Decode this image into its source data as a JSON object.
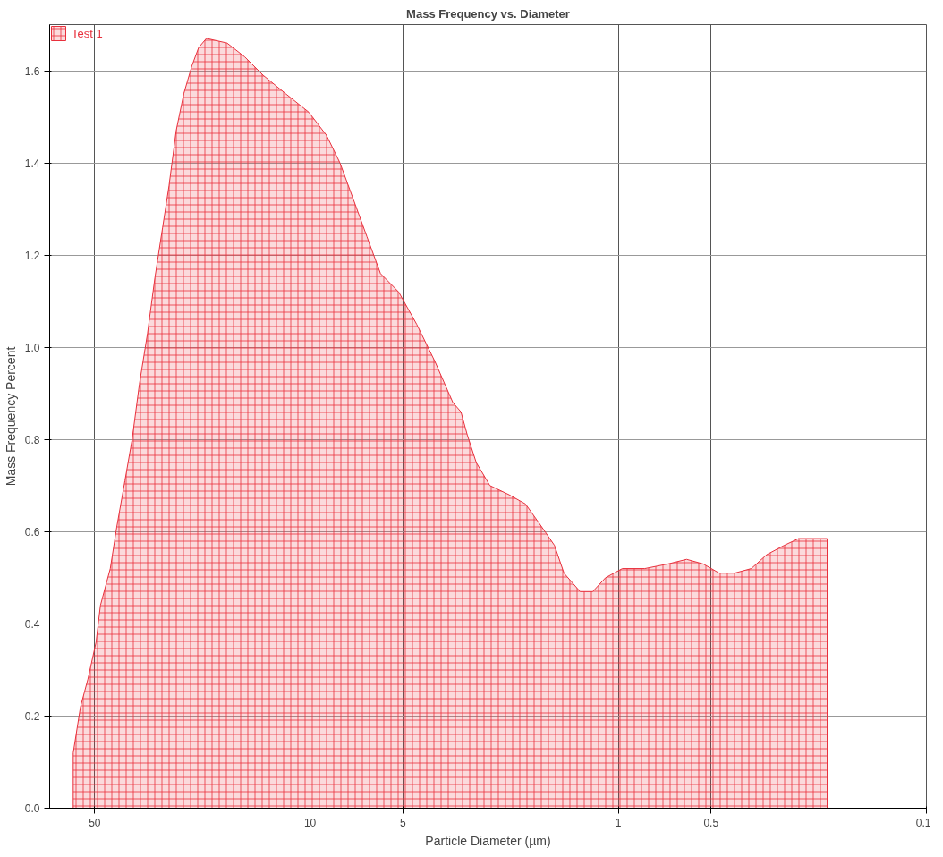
{
  "chart_data": {
    "type": "area",
    "title": "Mass Frequency vs. Diameter",
    "xlabel": "Particle Diameter (µm)",
    "ylabel": "Mass Frequency Percent",
    "log": "x",
    "xlim": [
      70,
      0.1
    ],
    "xticks": [
      50,
      10,
      5,
      1,
      0.5,
      0.1
    ],
    "ylim": [
      0,
      1.7
    ],
    "yticks": [
      {
        "value": 0,
        "label": "0.0"
      },
      0.2,
      0.4,
      0.6,
      0.8,
      {
        "value": 1,
        "label": "1.0"
      },
      1.2,
      1.4,
      1.6
    ],
    "grid": true,
    "legend": "top left",
    "series": [
      {
        "name": "Test 1",
        "color": "#e8303c",
        "x": [
          58.7,
          55.6,
          52.6,
          49.5,
          47.9,
          44.5,
          42.4,
          39.9,
          37.8,
          35.8,
          33.7,
          31.9,
          30.1,
          28.7,
          27.2,
          25.7,
          24.2,
          23.0,
          21.7,
          18.6,
          16.3,
          14.2,
          12.0,
          10.1,
          8.85,
          8.0,
          7.23,
          6.54,
          5.91,
          5.16,
          4.51,
          3.94,
          3.44,
          3.24,
          3.09,
          2.89,
          2.61,
          2.26,
          2.0,
          1.77,
          1.61,
          1.5,
          1.33,
          1.21,
          1.1,
          0.97,
          0.82,
          0.69,
          0.6,
          0.53,
          0.47,
          0.42,
          0.37,
          0.33,
          0.29,
          0.26,
          0.21
        ],
        "values": [
          0.12,
          0.22,
          0.28,
          0.36,
          0.44,
          0.52,
          0.61,
          0.71,
          0.8,
          0.92,
          1.03,
          1.15,
          1.26,
          1.35,
          1.47,
          1.55,
          1.61,
          1.65,
          1.67,
          1.66,
          1.63,
          1.59,
          1.55,
          1.51,
          1.46,
          1.4,
          1.32,
          1.24,
          1.16,
          1.12,
          1.05,
          0.97,
          0.88,
          0.86,
          0.81,
          0.75,
          0.7,
          0.68,
          0.66,
          0.61,
          0.57,
          0.51,
          0.47,
          0.47,
          0.5,
          0.52,
          0.52,
          0.53,
          0.54,
          0.53,
          0.51,
          0.51,
          0.52,
          0.55,
          0.57,
          0.585,
          0.585
        ]
      }
    ]
  }
}
